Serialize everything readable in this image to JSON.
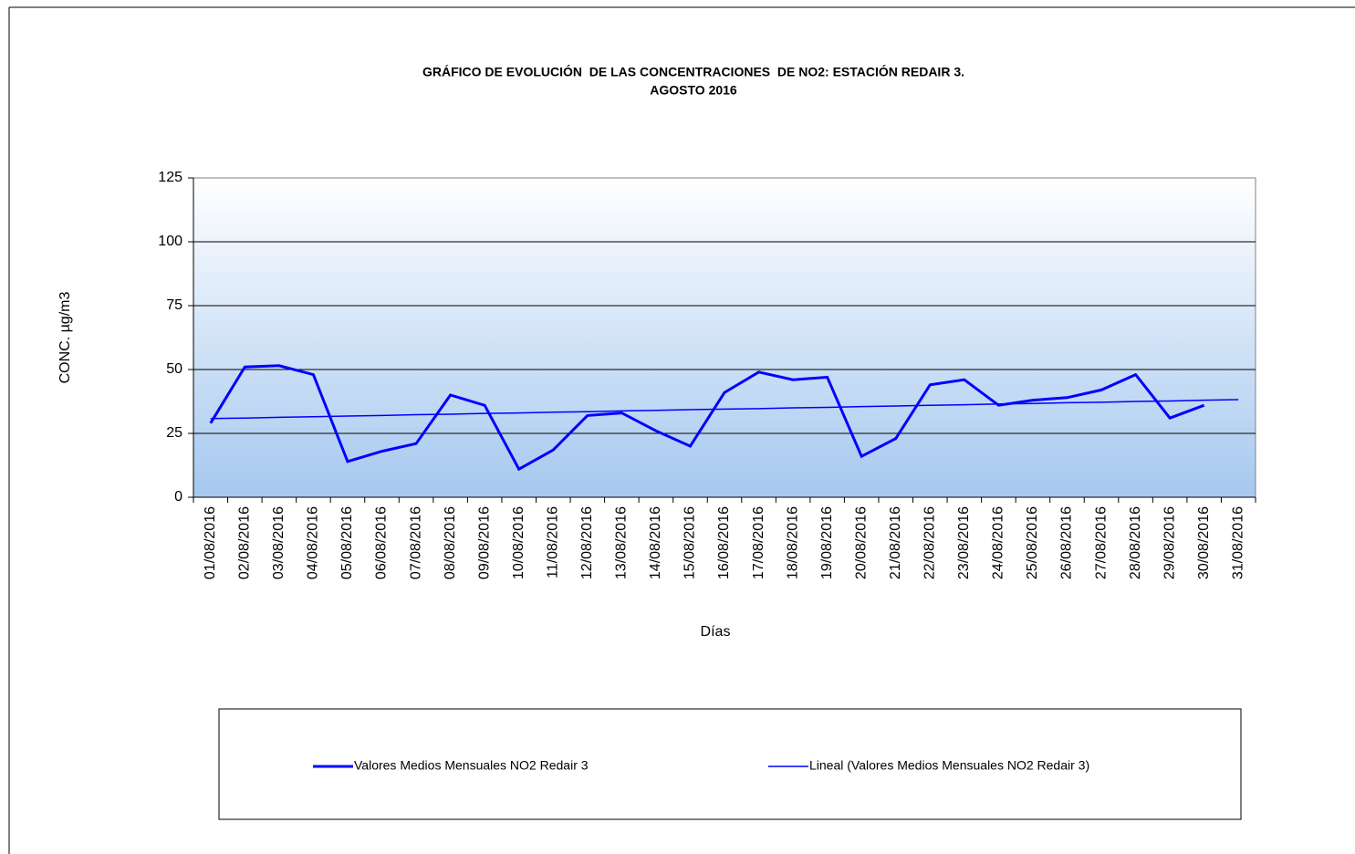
{
  "chart_data": {
    "type": "line",
    "title": "GRÁFICO DE EVOLUCIÓN  DE LAS CONCENTRACIONES  DE NO2: ESTACIÓN REDAIR 3.",
    "subtitle": "AGOSTO 2016",
    "x_label": "Días",
    "y_label": "CONC. µg/m3",
    "categories": [
      "01/08/2016",
      "02/08/2016",
      "03/08/2016",
      "04/08/2016",
      "05/08/2016",
      "06/08/2016",
      "07/08/2016",
      "08/08/2016",
      "09/08/2016",
      "10/08/2016",
      "11/08/2016",
      "12/08/2016",
      "13/08/2016",
      "14/08/2016",
      "15/08/2016",
      "16/08/2016",
      "17/08/2016",
      "18/08/2016",
      "19/08/2016",
      "20/08/2016",
      "21/08/2016",
      "22/08/2016",
      "23/08/2016",
      "24/08/2016",
      "25/08/2016",
      "26/08/2016",
      "27/08/2016",
      "28/08/2016",
      "29/08/2016",
      "30/08/2016",
      "31/08/2016"
    ],
    "series": [
      {
        "name": "Valores Medios Mensuales NO2 Redair 3",
        "color": "#0000ff",
        "values": [
          29,
          51,
          51.5,
          48,
          14,
          18,
          21,
          40,
          36,
          11,
          18.5,
          32,
          33,
          26,
          20,
          41,
          49,
          46,
          47,
          16,
          23,
          44,
          46,
          36,
          38,
          39,
          42,
          48,
          31,
          36,
          null
        ]
      },
      {
        "name": "Lineal (Valores Medios Mensuales NO2 Redair 3)",
        "color": "#0000ff",
        "values": [
          30.8,
          31.0,
          31.3,
          31.5,
          31.8,
          32.0,
          32.3,
          32.5,
          32.8,
          33.0,
          33.3,
          33.5,
          33.8,
          34.0,
          34.3,
          34.5,
          34.7,
          35.0,
          35.2,
          35.5,
          35.7,
          36.0,
          36.2,
          36.5,
          36.7,
          37.0,
          37.2,
          37.5,
          37.7,
          38.0,
          38.2
        ]
      }
    ],
    "ylim": [
      0,
      125
    ],
    "yticks": [
      0,
      25,
      50,
      75,
      100,
      125
    ],
    "grid": true
  }
}
